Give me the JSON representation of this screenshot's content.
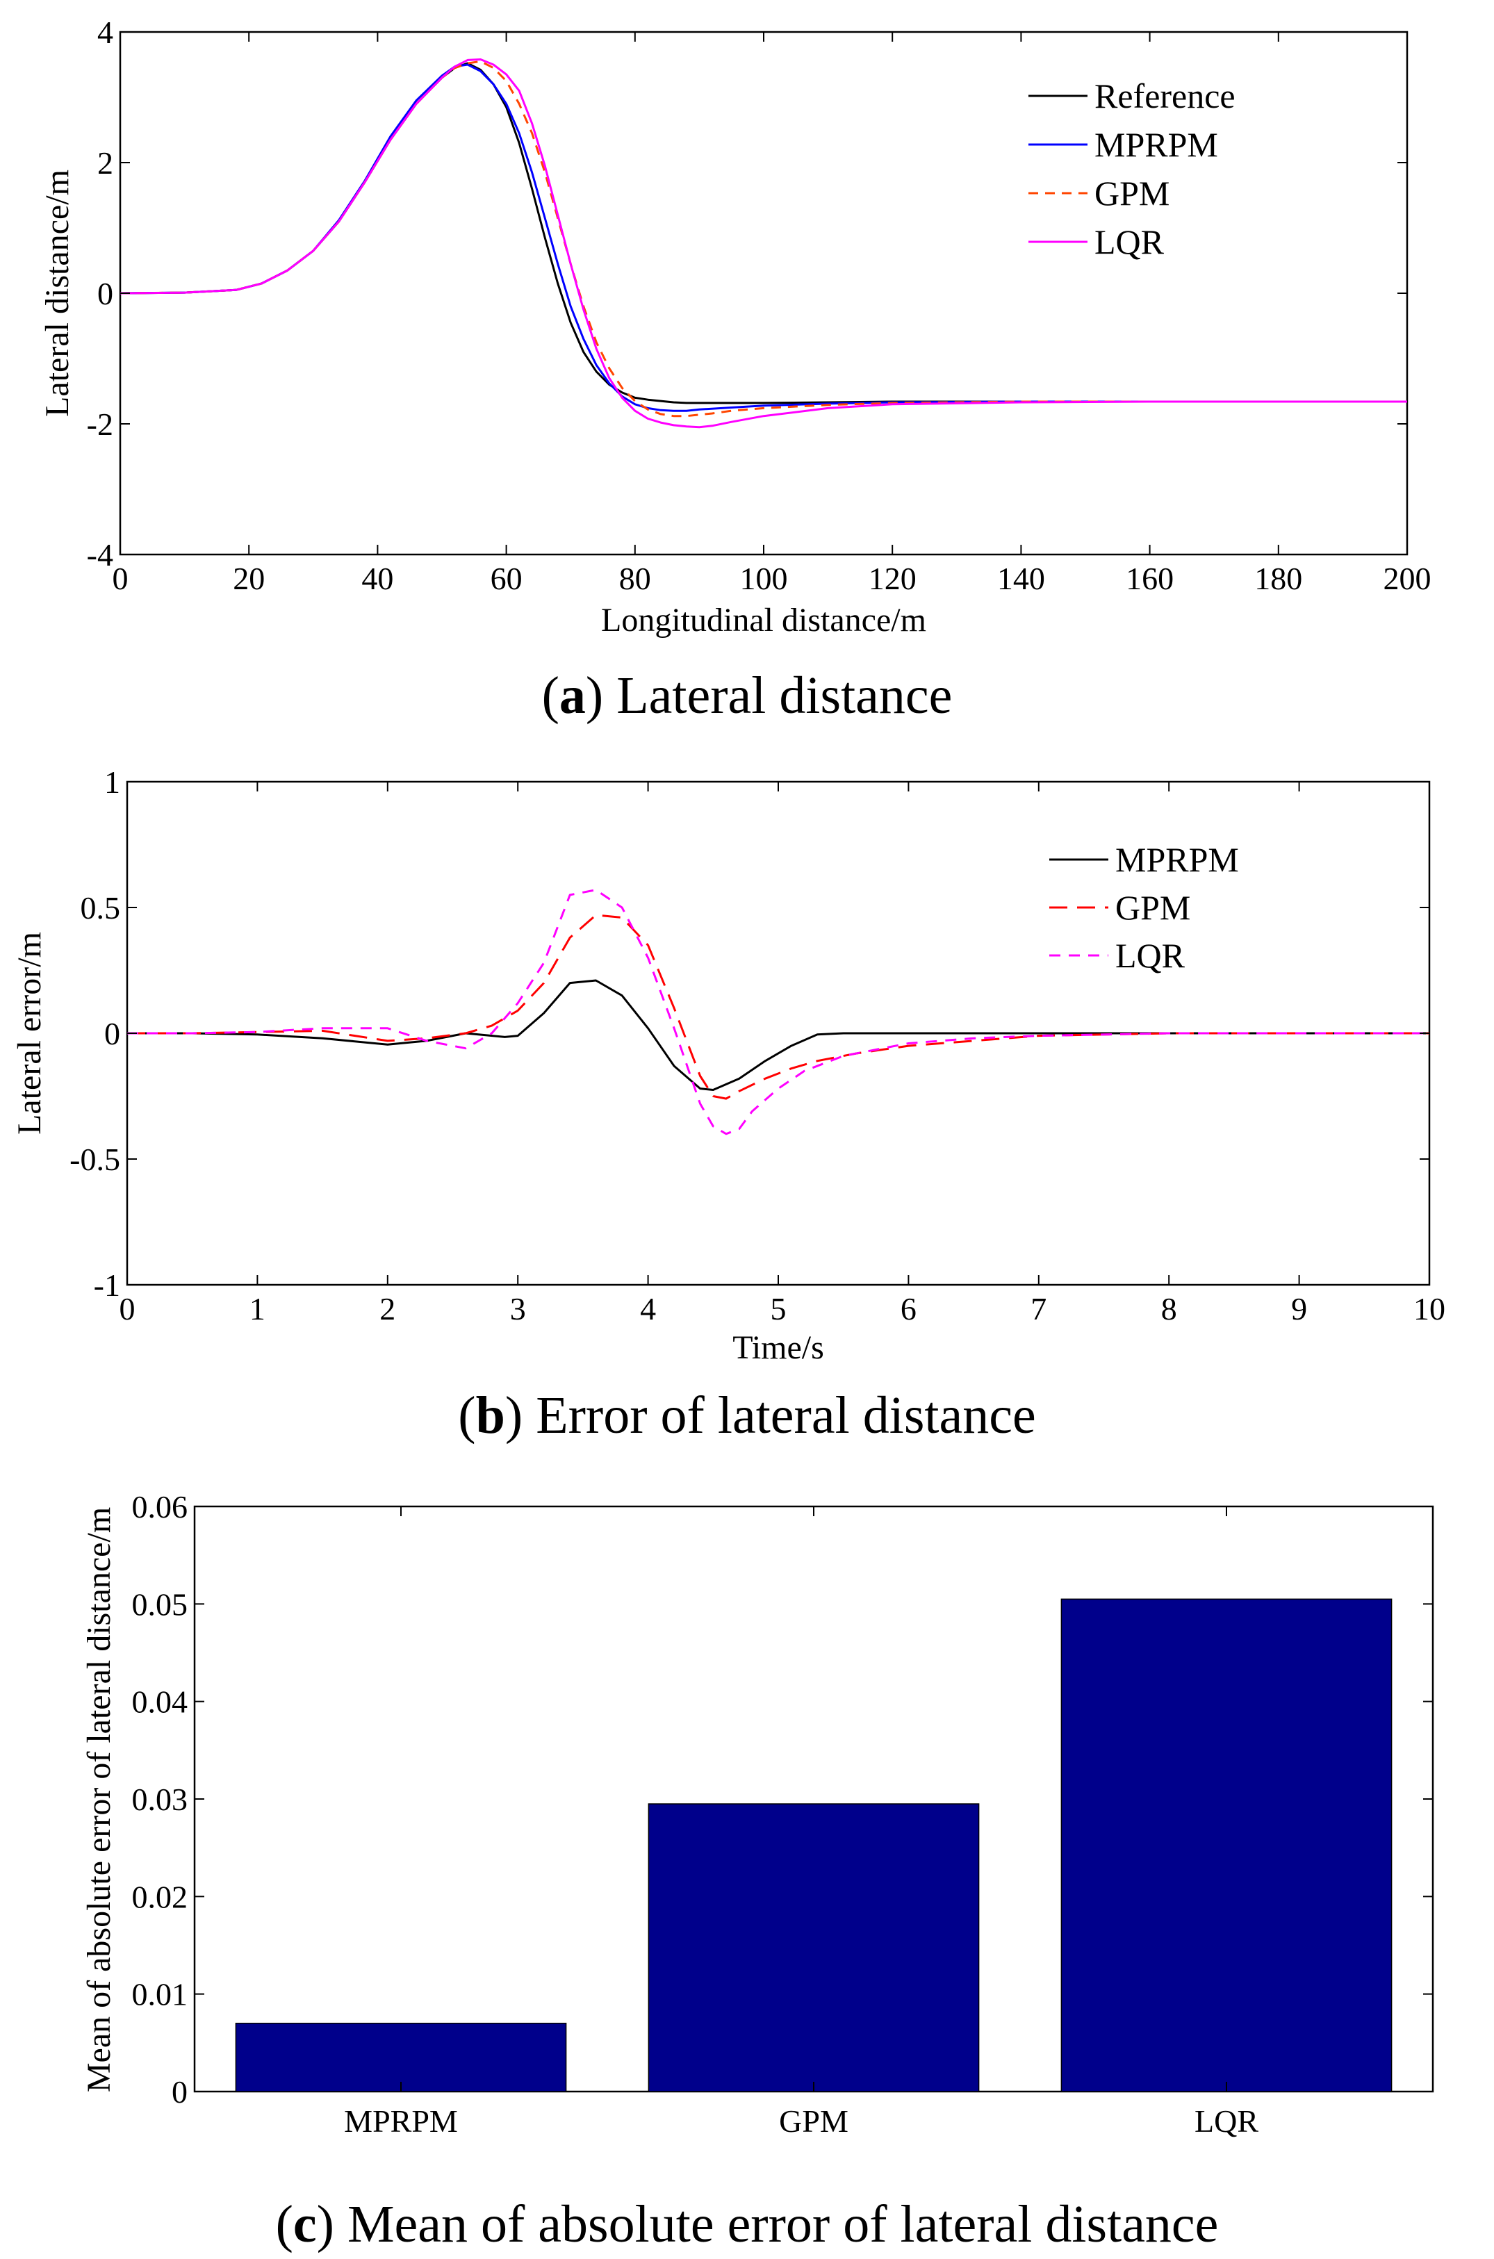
{
  "panels": [
    {
      "type": "line",
      "caption_letter": "a",
      "caption_text": " Lateral distance",
      "xlabel": "Longitudinal distance/m",
      "ylabel": "Lateral distance/m",
      "xlim": [
        0,
        200
      ],
      "ylim": [
        -4,
        4
      ],
      "xticks": [
        0,
        20,
        40,
        60,
        80,
        100,
        120,
        140,
        160,
        180,
        200
      ],
      "yticks": [
        -4,
        -2,
        0,
        2,
        4
      ],
      "legend_position": "top-right",
      "series": [
        {
          "name": "Reference",
          "color": "#000000",
          "dash": "",
          "x": [
            0,
            10,
            18,
            22,
            26,
            30,
            34,
            38,
            42,
            46,
            50,
            52,
            54,
            56,
            58,
            60,
            62,
            64,
            66,
            68,
            70,
            72,
            74,
            76,
            78,
            80,
            82,
            84,
            86,
            88,
            90,
            95,
            100,
            110,
            120,
            140,
            160,
            180,
            200
          ],
          "y": [
            0,
            0.01,
            0.05,
            0.15,
            0.35,
            0.65,
            1.1,
            1.7,
            2.35,
            2.9,
            3.3,
            3.45,
            3.52,
            3.42,
            3.2,
            2.85,
            2.3,
            1.6,
            0.85,
            0.15,
            -0.45,
            -0.9,
            -1.2,
            -1.4,
            -1.52,
            -1.6,
            -1.63,
            -1.65,
            -1.67,
            -1.68,
            -1.68,
            -1.68,
            -1.68,
            -1.67,
            -1.66,
            -1.66,
            -1.66,
            -1.66,
            -1.66
          ]
        },
        {
          "name": "MPRPM",
          "color": "#0000ff",
          "dash": "",
          "x": [
            0,
            10,
            18,
            22,
            26,
            30,
            34,
            38,
            42,
            46,
            50,
            52,
            54,
            56,
            58,
            60,
            62,
            64,
            66,
            68,
            70,
            72,
            74,
            76,
            78,
            80,
            82,
            84,
            86,
            88,
            90,
            95,
            100,
            110,
            120,
            140,
            160,
            180,
            200
          ],
          "y": [
            0,
            0.01,
            0.05,
            0.15,
            0.35,
            0.65,
            1.12,
            1.72,
            2.4,
            2.95,
            3.33,
            3.47,
            3.5,
            3.4,
            3.2,
            2.9,
            2.45,
            1.85,
            1.15,
            0.45,
            -0.2,
            -0.7,
            -1.1,
            -1.38,
            -1.58,
            -1.7,
            -1.76,
            -1.79,
            -1.8,
            -1.8,
            -1.78,
            -1.75,
            -1.72,
            -1.69,
            -1.67,
            -1.66,
            -1.66,
            -1.66,
            -1.66
          ]
        },
        {
          "name": "GPM",
          "color": "#ff4500",
          "dash": "14,10",
          "x": [
            0,
            10,
            18,
            22,
            26,
            30,
            34,
            38,
            42,
            46,
            50,
            52,
            54,
            56,
            58,
            60,
            62,
            64,
            66,
            68,
            70,
            72,
            74,
            76,
            78,
            80,
            82,
            84,
            86,
            88,
            90,
            92,
            95,
            100,
            110,
            120,
            140,
            160,
            180,
            200
          ],
          "y": [
            0,
            0.01,
            0.05,
            0.15,
            0.35,
            0.65,
            1.1,
            1.7,
            2.35,
            2.9,
            3.3,
            3.45,
            3.52,
            3.55,
            3.45,
            3.25,
            2.9,
            2.45,
            1.85,
            1.15,
            0.45,
            -0.2,
            -0.75,
            -1.15,
            -1.45,
            -1.65,
            -1.78,
            -1.85,
            -1.88,
            -1.88,
            -1.86,
            -1.84,
            -1.8,
            -1.76,
            -1.71,
            -1.68,
            -1.66,
            -1.66,
            -1.66,
            -1.66
          ]
        },
        {
          "name": "LQR",
          "color": "#ff00ff",
          "dash": "",
          "x": [
            0,
            10,
            18,
            22,
            26,
            30,
            34,
            38,
            42,
            46,
            50,
            52,
            54,
            56,
            58,
            60,
            62,
            64,
            66,
            68,
            70,
            72,
            74,
            76,
            78,
            80,
            82,
            84,
            86,
            88,
            90,
            92,
            95,
            100,
            110,
            120,
            140,
            160,
            180,
            200
          ],
          "y": [
            0,
            0.01,
            0.05,
            0.15,
            0.35,
            0.65,
            1.1,
            1.7,
            2.35,
            2.9,
            3.3,
            3.47,
            3.57,
            3.58,
            3.5,
            3.35,
            3.1,
            2.6,
            1.95,
            1.2,
            0.45,
            -0.25,
            -0.85,
            -1.3,
            -1.6,
            -1.8,
            -1.92,
            -1.98,
            -2.02,
            -2.04,
            -2.05,
            -2.03,
            -1.97,
            -1.88,
            -1.76,
            -1.7,
            -1.67,
            -1.66,
            -1.66,
            -1.66
          ]
        }
      ]
    },
    {
      "type": "line",
      "caption_letter": "b",
      "caption_text": " Error of lateral distance",
      "xlabel": "Time/s",
      "ylabel": "Lateral error/m",
      "xlim": [
        0,
        10
      ],
      "ylim": [
        -1,
        1
      ],
      "xticks": [
        0,
        1,
        2,
        3,
        4,
        5,
        6,
        7,
        8,
        9,
        10
      ],
      "yticks": [
        -1,
        -0.5,
        0,
        0.5,
        1
      ],
      "legend_position": "top-right",
      "series": [
        {
          "name": "MPRPM",
          "color": "#000000",
          "dash": "",
          "x": [
            0,
            0.5,
            1,
            1.5,
            2,
            2.3,
            2.6,
            2.9,
            3.0,
            3.2,
            3.4,
            3.6,
            3.8,
            4.0,
            4.2,
            4.4,
            4.5,
            4.7,
            4.9,
            5.1,
            5.3,
            5.5,
            6,
            7,
            8,
            9,
            10
          ],
          "y": [
            0,
            0,
            -0.005,
            -0.02,
            -0.045,
            -0.03,
            0,
            -0.015,
            -0.01,
            0.08,
            0.2,
            0.21,
            0.15,
            0.02,
            -0.13,
            -0.22,
            -0.225,
            -0.18,
            -0.11,
            -0.05,
            -0.005,
            0,
            0,
            0,
            0,
            0,
            0
          ]
        },
        {
          "name": "GPM",
          "color": "#ff0000",
          "dash": "26,14",
          "x": [
            0,
            0.5,
            1,
            1.5,
            2,
            2.3,
            2.6,
            2.8,
            3.0,
            3.2,
            3.4,
            3.6,
            3.8,
            4.0,
            4.2,
            4.4,
            4.5,
            4.6,
            4.7,
            4.9,
            5.1,
            5.3,
            5.6,
            6.0,
            6.5,
            7,
            8,
            9,
            10
          ],
          "y": [
            0,
            0,
            0.005,
            0.01,
            -0.03,
            -0.02,
            0,
            0.03,
            0.09,
            0.2,
            0.38,
            0.47,
            0.46,
            0.35,
            0.1,
            -0.17,
            -0.25,
            -0.26,
            -0.23,
            -0.18,
            -0.14,
            -0.11,
            -0.08,
            -0.05,
            -0.03,
            -0.01,
            0,
            0,
            0
          ]
        },
        {
          "name": "LQR",
          "color": "#ff00ff",
          "dash": "16,12",
          "x": [
            0,
            0.5,
            1,
            1.5,
            2,
            2.3,
            2.6,
            2.8,
            3.0,
            3.2,
            3.4,
            3.6,
            3.8,
            4.0,
            4.2,
            4.4,
            4.5,
            4.6,
            4.7,
            4.8,
            5.0,
            5.2,
            5.5,
            6.0,
            6.5,
            7,
            8,
            9,
            10
          ],
          "y": [
            0,
            0,
            0.005,
            0.02,
            0.02,
            -0.03,
            -0.06,
            0.0,
            0.12,
            0.28,
            0.55,
            0.57,
            0.5,
            0.3,
            0.02,
            -0.28,
            -0.37,
            -0.4,
            -0.38,
            -0.31,
            -0.22,
            -0.15,
            -0.09,
            -0.04,
            -0.02,
            -0.01,
            0,
            0,
            0
          ]
        }
      ]
    },
    {
      "type": "bar",
      "caption_letter": "c",
      "caption_text": " Mean of absolute error of lateral distance",
      "xlabel": "",
      "ylabel": "Mean of absolute error of lateral distance/m",
      "ylim": [
        0,
        0.06
      ],
      "yticks": [
        0,
        0.01,
        0.02,
        0.03,
        0.04,
        0.05,
        0.06
      ],
      "categories": [
        "MPRPM",
        "GPM",
        "LQR"
      ],
      "values": [
        0.007,
        0.0295,
        0.0505
      ],
      "bar_color": "#00008b"
    }
  ]
}
